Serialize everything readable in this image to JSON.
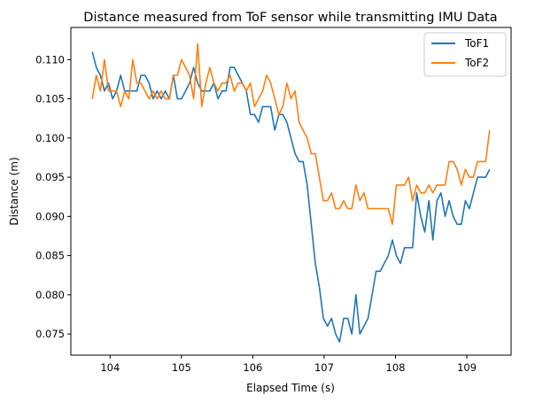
{
  "chart_data": {
    "type": "line",
    "title": "Distance measured from ToF sensor while transmitting IMU Data",
    "xlabel": "Elapsed Time (s)",
    "ylabel": "Distance (m)",
    "xlim": [
      103.45,
      109.62
    ],
    "ylim": [
      0.0723,
      0.1141
    ],
    "x_range": [
      103.75,
      109.32
    ],
    "xticks": [
      104,
      105,
      106,
      107,
      108,
      109
    ],
    "xtick_labels": [
      "104",
      "105",
      "106",
      "107",
      "108",
      "109"
    ],
    "yticks": [
      0.075,
      0.08,
      0.085,
      0.09,
      0.095,
      0.1,
      0.105,
      0.11
    ],
    "ytick_labels": [
      "0.075",
      "0.080",
      "0.085",
      "0.090",
      "0.095",
      "0.100",
      "0.105",
      "0.110"
    ],
    "grid": false,
    "legend": "top-right",
    "series": [
      {
        "name": "ToF1",
        "color": "#1f77b4",
        "values": [
          0.111,
          0.109,
          0.108,
          0.106,
          0.107,
          0.105,
          0.106,
          0.108,
          0.106,
          0.106,
          0.106,
          0.106,
          0.108,
          0.108,
          0.107,
          0.105,
          0.106,
          0.105,
          0.106,
          0.105,
          0.108,
          0.105,
          0.105,
          0.106,
          0.107,
          0.109,
          0.107,
          0.106,
          0.106,
          0.106,
          0.107,
          0.105,
          0.106,
          0.106,
          0.109,
          0.109,
          0.108,
          0.107,
          0.106,
          0.103,
          0.103,
          0.102,
          0.104,
          0.104,
          0.104,
          0.101,
          0.103,
          0.103,
          0.102,
          0.1,
          0.098,
          0.097,
          0.097,
          0.094,
          0.089,
          0.084,
          0.081,
          0.077,
          0.076,
          0.077,
          0.075,
          0.074,
          0.077,
          0.077,
          0.075,
          0.08,
          0.075,
          0.076,
          0.077,
          0.08,
          0.083,
          0.083,
          0.084,
          0.085,
          0.087,
          0.085,
          0.084,
          0.086,
          0.086,
          0.086,
          0.093,
          0.09,
          0.088,
          0.092,
          0.087,
          0.092,
          0.093,
          0.09,
          0.092,
          0.09,
          0.089,
          0.089,
          0.092,
          0.091,
          0.093,
          0.095,
          0.095,
          0.095,
          0.096
        ]
      },
      {
        "name": "ToF2",
        "color": "#ff7f0e",
        "values": [
          0.105,
          0.108,
          0.106,
          0.11,
          0.106,
          0.106,
          0.106,
          0.104,
          0.106,
          0.105,
          0.11,
          0.107,
          0.107,
          0.106,
          0.105,
          0.106,
          0.105,
          0.106,
          0.105,
          0.105,
          0.108,
          0.108,
          0.11,
          0.109,
          0.108,
          0.105,
          0.112,
          0.104,
          0.107,
          0.109,
          0.107,
          0.106,
          0.107,
          0.107,
          0.108,
          0.106,
          0.107,
          0.107,
          0.106,
          0.107,
          0.104,
          0.105,
          0.106,
          0.108,
          0.107,
          0.105,
          0.103,
          0.104,
          0.107,
          0.105,
          0.106,
          0.102,
          0.101,
          0.1,
          0.098,
          0.098,
          0.095,
          0.092,
          0.092,
          0.093,
          0.091,
          0.091,
          0.092,
          0.091,
          0.091,
          0.094,
          0.092,
          0.093,
          0.091,
          0.091,
          0.091,
          0.091,
          0.091,
          0.091,
          0.089,
          0.094,
          0.094,
          0.094,
          0.095,
          0.092,
          0.094,
          0.093,
          0.093,
          0.094,
          0.093,
          0.094,
          0.094,
          0.094,
          0.097,
          0.097,
          0.096,
          0.094,
          0.096,
          0.095,
          0.095,
          0.097,
          0.097,
          0.097,
          0.101
        ]
      }
    ]
  }
}
